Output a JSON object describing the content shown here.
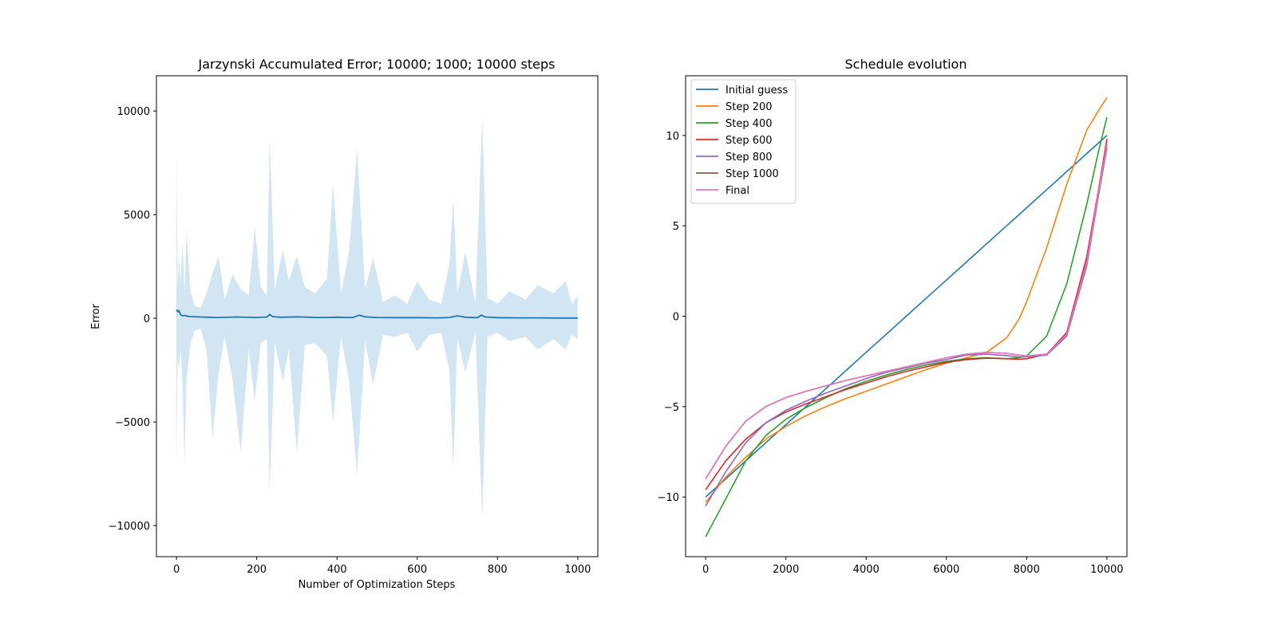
{
  "chart_data": [
    {
      "type": "line",
      "title": "Jarzynski Accumulated Error; 10000; 1000; 10000 steps",
      "xlabel": "Number of Optimization Steps",
      "ylabel": "Error",
      "xlim": [
        -50,
        1050
      ],
      "ylim": [
        -11500,
        11700
      ],
      "xticks": [
        0,
        200,
        400,
        600,
        800,
        1000
      ],
      "xtick_labels": [
        "0",
        "200",
        "400",
        "600",
        "800",
        "1000"
      ],
      "yticks": [
        -10000,
        -5000,
        0,
        5000,
        10000
      ],
      "ytick_labels": [
        "−10000",
        "−5000",
        "0",
        "5000",
        "10000"
      ],
      "grid": false,
      "color": "#1f77b4",
      "band_color": "#a6cbe6",
      "mean": {
        "x": [
          0,
          3,
          6,
          10,
          15,
          20,
          30,
          40,
          60,
          80,
          100,
          150,
          200,
          225,
          232,
          240,
          260,
          300,
          350,
          400,
          440,
          455,
          470,
          500,
          550,
          600,
          650,
          680,
          700,
          720,
          750,
          760,
          770,
          800,
          850,
          900,
          950,
          1000
        ],
        "y": [
          420,
          310,
          360,
          180,
          120,
          140,
          90,
          80,
          60,
          50,
          40,
          60,
          40,
          60,
          180,
          80,
          50,
          70,
          40,
          50,
          40,
          150,
          70,
          40,
          30,
          30,
          20,
          40,
          120,
          50,
          30,
          150,
          60,
          30,
          20,
          20,
          10,
          10
        ]
      },
      "spread": {
        "x": [
          0,
          3,
          6,
          10,
          15,
          20,
          25,
          35,
          45,
          60,
          75,
          90,
          105,
          120,
          140,
          160,
          180,
          195,
          210,
          225,
          232,
          245,
          265,
          280,
          300,
          320,
          345,
          375,
          390,
          410,
          430,
          450,
          470,
          490,
          515,
          545,
          575,
          600,
          630,
          660,
          680,
          690,
          700,
          720,
          745,
          762,
          775,
          800,
          830,
          870,
          900,
          940,
          970,
          985,
          1000
        ],
        "upper": [
          7800,
          1500,
          3000,
          1800,
          3600,
          1200,
          4200,
          1300,
          600,
          500,
          1200,
          2200,
          3000,
          900,
          2100,
          1400,
          1100,
          4400,
          1500,
          1100,
          8800,
          1400,
          3300,
          1800,
          3000,
          1500,
          1200,
          1900,
          6500,
          1200,
          3200,
          8200,
          1400,
          2900,
          800,
          1100,
          700,
          1800,
          900,
          700,
          2600,
          5800,
          1200,
          3200,
          700,
          9700,
          1000,
          700,
          1300,
          900,
          1600,
          1200,
          1800,
          700,
          1100
        ],
        "lower": [
          -7000,
          -2000,
          -2500,
          -1500,
          -3200,
          -6900,
          -3000,
          -1200,
          -600,
          -500,
          -1500,
          -5800,
          -2600,
          -900,
          -3000,
          -6500,
          -1500,
          -4000,
          -1200,
          -1000,
          -8400,
          -1200,
          -3000,
          -1500,
          -6500,
          -1300,
          -1200,
          -1800,
          -5000,
          -900,
          -3000,
          -7600,
          -1100,
          -3200,
          -800,
          -900,
          -700,
          -1600,
          -800,
          -700,
          -2500,
          -7300,
          -1000,
          -2600,
          -700,
          -9700,
          -900,
          -700,
          -1100,
          -900,
          -1500,
          -1000,
          -1500,
          -800,
          -1000
        ]
      }
    },
    {
      "type": "line",
      "title": "Schedule evolution",
      "xlabel": "",
      "ylabel": "",
      "xlim": [
        -500,
        10500
      ],
      "ylim": [
        -13.3,
        13.3
      ],
      "xticks": [
        0,
        2000,
        4000,
        6000,
        8000,
        10000
      ],
      "xtick_labels": [
        "0",
        "2000",
        "4000",
        "6000",
        "8000",
        "10000"
      ],
      "yticks": [
        -10,
        -5,
        0,
        5,
        10
      ],
      "ytick_labels": [
        "−10",
        "−5",
        "0",
        "5",
        "10"
      ],
      "grid": false,
      "legend_position": "top-left",
      "x": [
        0,
        500,
        1000,
        1500,
        2000,
        2500,
        3000,
        3500,
        4000,
        4500,
        5000,
        5500,
        6000,
        6500,
        7000,
        7500,
        7800,
        8000,
        8500,
        9000,
        9500,
        9800,
        10000
      ],
      "series": [
        {
          "name": "Initial guess",
          "color": "#1f77b4",
          "values": [
            -10,
            -9,
            -8,
            -7,
            -6,
            -5,
            -4,
            -3,
            -2,
            -1,
            0,
            1,
            2,
            3,
            4,
            5,
            5.6,
            6,
            7,
            8,
            9,
            9.6,
            10
          ]
        },
        {
          "name": "Step 200",
          "color": "#ff7f0e",
          "values": [
            -10.3,
            -8.9,
            -7.8,
            -6.8,
            -6.1,
            -5.5,
            -5.0,
            -4.55,
            -4.15,
            -3.75,
            -3.35,
            -2.95,
            -2.6,
            -2.3,
            -2.0,
            -1.2,
            -0.2,
            0.8,
            3.8,
            7.3,
            10.3,
            11.4,
            12.1
          ]
        },
        {
          "name": "Step 400",
          "color": "#2ca02c",
          "values": [
            -12.2,
            -10.1,
            -8.0,
            -6.6,
            -5.7,
            -5.05,
            -4.5,
            -4.0,
            -3.6,
            -3.25,
            -2.95,
            -2.7,
            -2.5,
            -2.35,
            -2.3,
            -2.35,
            -2.3,
            -2.2,
            -1.1,
            1.8,
            6.2,
            9.2,
            11.0
          ]
        },
        {
          "name": "Step 600",
          "color": "#d62728",
          "values": [
            -9.6,
            -8.0,
            -6.8,
            -5.9,
            -5.3,
            -4.85,
            -4.45,
            -4.05,
            -3.7,
            -3.35,
            -3.05,
            -2.8,
            -2.55,
            -2.4,
            -2.32,
            -2.35,
            -2.38,
            -2.35,
            -2.1,
            -0.9,
            3.3,
            7.1,
            9.8
          ]
        },
        {
          "name": "Step 800",
          "color": "#9467bd",
          "values": [
            -10.5,
            -8.6,
            -7.0,
            -5.9,
            -5.2,
            -4.7,
            -4.25,
            -3.85,
            -3.45,
            -3.1,
            -2.85,
            -2.6,
            -2.4,
            -2.15,
            -2.1,
            -2.18,
            -2.25,
            -2.25,
            -2.15,
            -1.1,
            2.8,
            6.8,
            9.3
          ]
        },
        {
          "name": "Step 1000",
          "color": "#8c564b",
          "values": [
            -9.0,
            -7.2,
            -5.8,
            -5.0,
            -4.5,
            -4.15,
            -3.85,
            -3.55,
            -3.3,
            -3.05,
            -2.8,
            -2.55,
            -2.3,
            -2.1,
            -2.0,
            -2.05,
            -2.15,
            -2.2,
            -2.1,
            -1.0,
            3.0,
            7.0,
            9.5
          ]
        },
        {
          "name": "Final",
          "color": "#e377c2",
          "values": [
            -9.0,
            -7.2,
            -5.8,
            -5.0,
            -4.5,
            -4.15,
            -3.85,
            -3.55,
            -3.3,
            -3.05,
            -2.8,
            -2.55,
            -2.3,
            -2.1,
            -2.0,
            -2.05,
            -2.15,
            -2.2,
            -2.1,
            -1.0,
            3.0,
            7.0,
            9.5
          ]
        }
      ]
    }
  ]
}
